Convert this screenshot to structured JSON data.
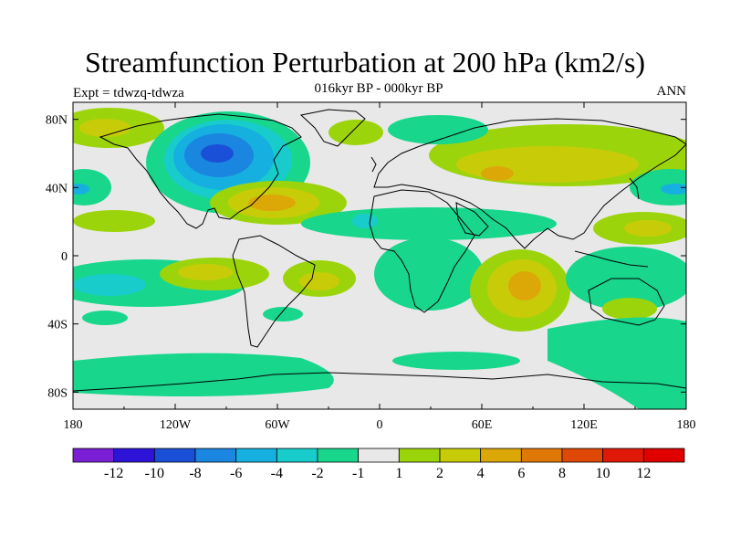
{
  "chart_data": {
    "type": "heatmap",
    "title": "Streamfunction Perturbation at 200 hPa (km2/s)",
    "subtitle": "016kyr BP - 000kyr BP",
    "left_label": "Expt = tdwzq-tdwza",
    "right_label": "ANN",
    "x_ticks": [
      "180",
      "120W",
      "60W",
      "0",
      "60E",
      "120E",
      "180"
    ],
    "y_ticks": [
      "80N",
      "40N",
      "0",
      "40S",
      "80S"
    ],
    "colorbar_labels": [
      "-12",
      "-10",
      "-8",
      "-6",
      "-4",
      "-2",
      "-1",
      "1",
      "2",
      "4",
      "6",
      "8",
      "10",
      "12"
    ],
    "colorbar_colors": [
      "#7a1fd6",
      "#2d14d8",
      "#1a50d8",
      "#1a86e0",
      "#16b0e0",
      "#18cccc",
      "#18d68c",
      "#e8e8e8",
      "#9cd40c",
      "#c8cc08",
      "#dca808",
      "#e07808",
      "#e04808",
      "#e01808",
      "#e00000"
    ],
    "regions": [
      {
        "lon": -86,
        "lat": 58,
        "level": "-6",
        "label": "negative max over northern North America"
      },
      {
        "lon": -72,
        "lat": 32,
        "level": "4",
        "label": "positive center over western Atlantic"
      },
      {
        "lon": 86,
        "lat": -15,
        "level": "6",
        "label": "positive center over Indian Ocean"
      },
      {
        "lon": 52,
        "lat": 52,
        "level": "2",
        "label": "positive band across Eurasia"
      },
      {
        "lon": -150,
        "lat": -15,
        "level": "-2",
        "label": "negative band over South Pacific"
      },
      {
        "lon": 160,
        "lat": -50,
        "level": "-2",
        "label": "negative band over Southern Ocean"
      }
    ]
  }
}
